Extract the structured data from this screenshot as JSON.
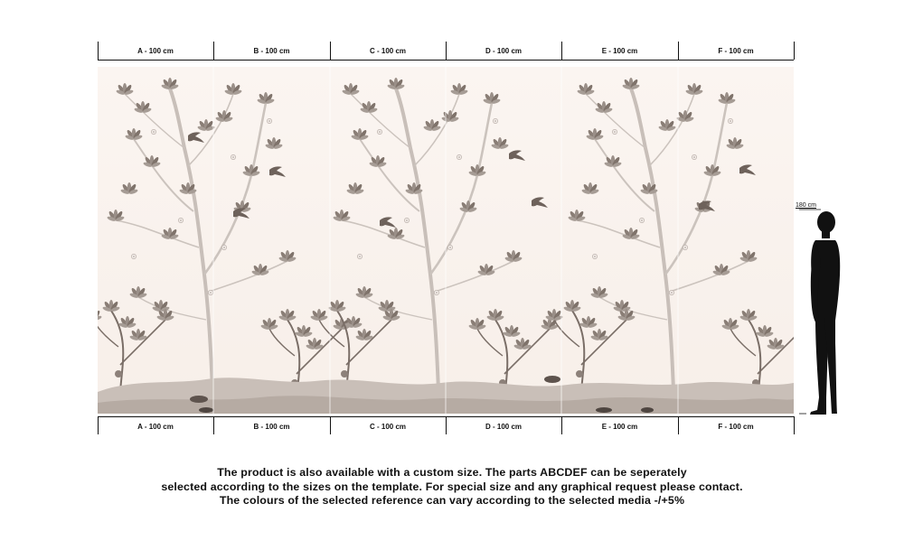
{
  "panels": [
    {
      "id": "A",
      "label": "A - 100 cm"
    },
    {
      "id": "B",
      "label": "B - 100 cm"
    },
    {
      "id": "C",
      "label": "C - 100 cm"
    },
    {
      "id": "D",
      "label": "D - 100 cm"
    },
    {
      "id": "E",
      "label": "E - 100 cm"
    },
    {
      "id": "F",
      "label": "F - 100 cm"
    }
  ],
  "scale": {
    "height_label": "180 cm"
  },
  "notes": [
    "The product is also available with a custom size. The parts ABCDEF can be seperately",
    "selected according to the sizes on the template. For special size and any graphical request please contact.",
    "The colours of the selected reference can vary according to the selected media -/+5%"
  ],
  "colors": {
    "background": "#ffffff",
    "mural_background": "#faf3ee",
    "foliage": "#8a7e76",
    "ink": "#111111"
  }
}
